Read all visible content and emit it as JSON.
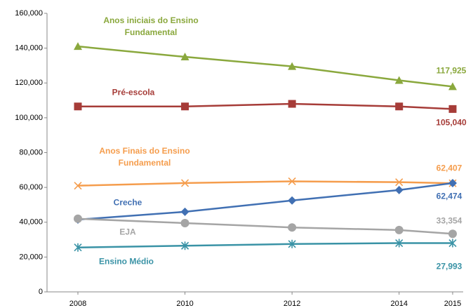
{
  "chart_data": {
    "type": "line",
    "x": [
      2008,
      2010,
      2012,
      2014,
      2015
    ],
    "xlim": [
      2008,
      2015
    ],
    "xticks": [
      2008,
      2010,
      2012,
      2014,
      2015
    ],
    "ylim": [
      0,
      160000
    ],
    "yticks": [
      0,
      {
        "value": 20000,
        "label": "20,000"
      },
      {
        "value": 40000,
        "label": "40,000"
      },
      {
        "value": 60000,
        "label": "60,000"
      },
      {
        "value": 80000,
        "label": "80,000"
      },
      {
        "value": 100000,
        "label": "100,000"
      },
      {
        "value": 120000,
        "label": "120,000"
      },
      {
        "value": 140000,
        "label": "140,000"
      },
      {
        "value": 160000,
        "label": "160,000"
      }
    ],
    "grid": false,
    "series": [
      {
        "name": "Anos iniciais do Ensino Fundamental",
        "color": "#8aa83d",
        "marker": "triangle",
        "values": [
          141000,
          135000,
          129500,
          121500,
          117925
        ],
        "value_labels": [
          null,
          null,
          null,
          null,
          "117,925"
        ]
      },
      {
        "name": "Pré-escola",
        "color": "#a63c38",
        "marker": "square",
        "values": [
          106500,
          106500,
          108000,
          106500,
          105040
        ],
        "value_labels": [
          null,
          null,
          null,
          null,
          "105,040"
        ]
      },
      {
        "name": "Anos Finais do Ensino Fundamental",
        "color": "#f59d4d",
        "marker": "x",
        "values": [
          61000,
          62500,
          63500,
          63000,
          62407
        ],
        "value_labels": [
          null,
          null,
          null,
          null,
          "62,407"
        ]
      },
      {
        "name": "Creche",
        "color": "#4170b3",
        "marker": "diamond",
        "values": [
          41500,
          46000,
          52500,
          58500,
          62474
        ],
        "value_labels": [
          null,
          null,
          null,
          null,
          "62,474"
        ]
      },
      {
        "name": "EJA",
        "color": "#a5a5a5",
        "marker": "circle",
        "values": [
          42000,
          39500,
          37000,
          35500,
          33354
        ],
        "value_labels": [
          null,
          null,
          null,
          null,
          "33,354"
        ]
      },
      {
        "name": "Ensino Médio",
        "color": "#3a93a6",
        "marker": "asterisk",
        "values": [
          25500,
          26500,
          27500,
          28000,
          27993
        ],
        "value_labels": [
          null,
          null,
          null,
          null,
          "27,993"
        ]
      }
    ]
  }
}
